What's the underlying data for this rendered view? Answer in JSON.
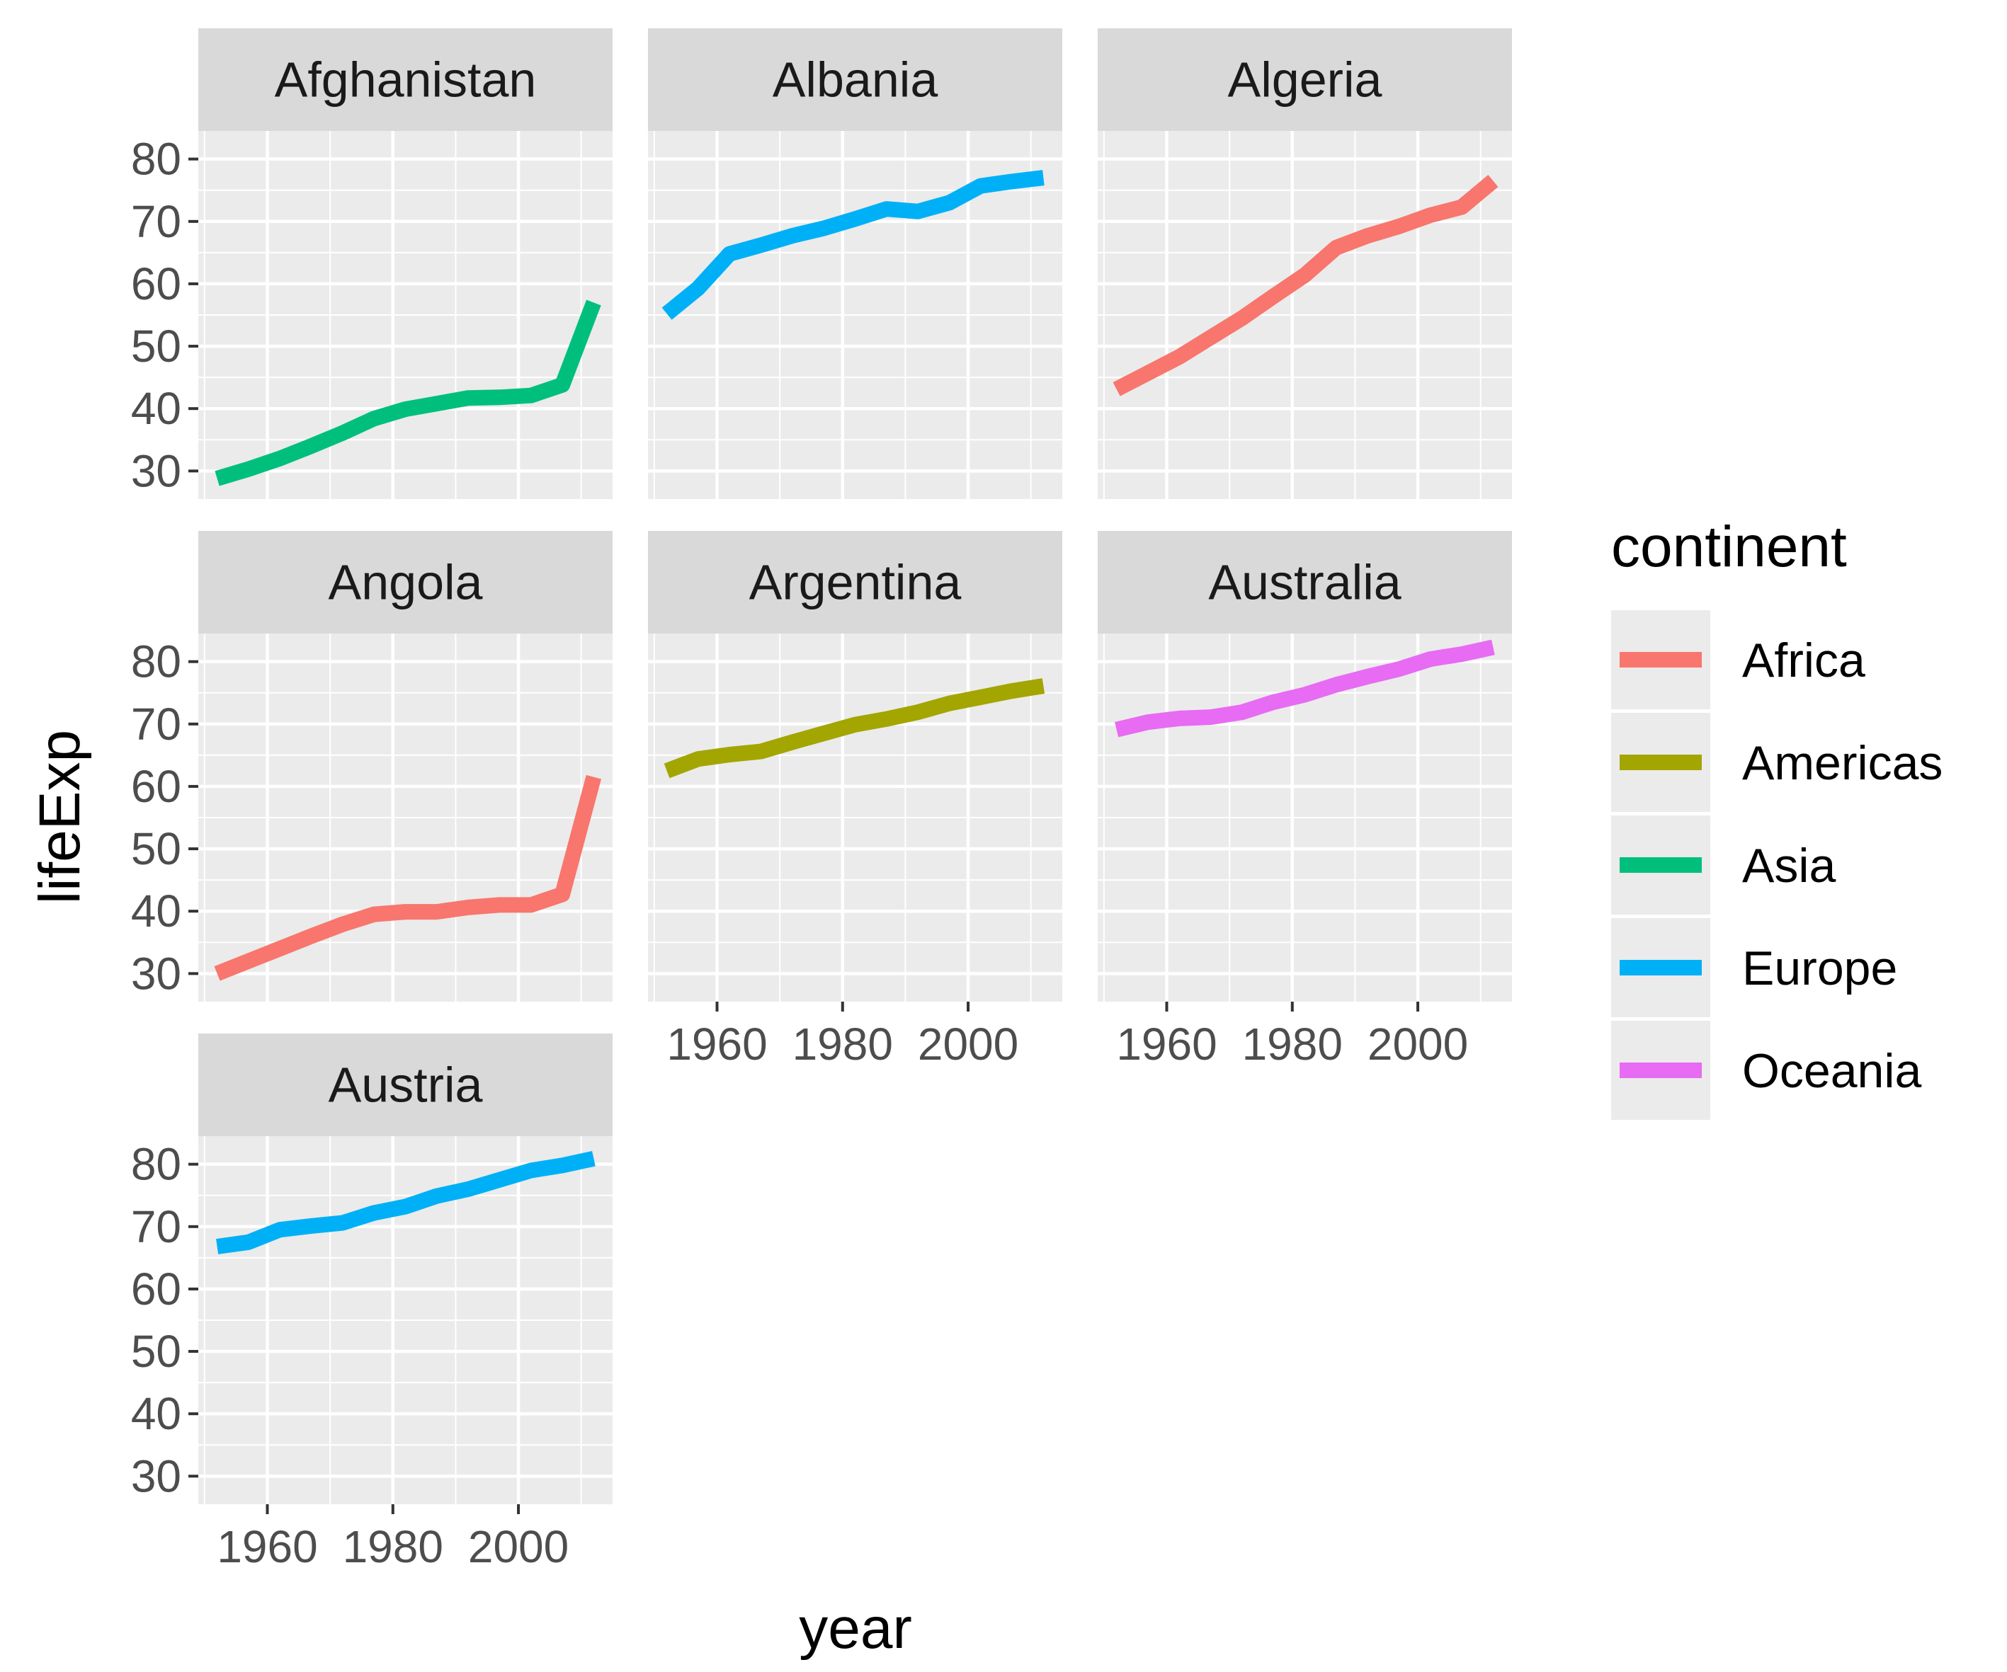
{
  "chart_data": {
    "type": "line",
    "facet_by": "country",
    "xlabel": "year",
    "ylabel": "lifeExp",
    "xlim": [
      1949,
      2015
    ],
    "ylim": [
      25.5,
      84.5
    ],
    "x_ticks": [
      1960,
      1980,
      2000
    ],
    "y_ticks": [
      30,
      40,
      50,
      60,
      70,
      80
    ],
    "grid": true,
    "legend": {
      "title": "continent",
      "position": "right",
      "entries": [
        {
          "name": "Africa",
          "color": "#F8766D"
        },
        {
          "name": "Americas",
          "color": "#A3A500"
        },
        {
          "name": "Asia",
          "color": "#00BF7D"
        },
        {
          "name": "Europe",
          "color": "#00B0F6"
        },
        {
          "name": "Oceania",
          "color": "#E76BF3"
        }
      ]
    },
    "x": [
      1952,
      1957,
      1962,
      1967,
      1972,
      1977,
      1982,
      1987,
      1992,
      1997,
      2002,
      2007,
      2012
    ],
    "panels": [
      {
        "country": "Afghanistan",
        "continent": "Asia",
        "values": [
          28.8,
          30.3,
          32.0,
          34.0,
          36.1,
          38.4,
          39.9,
          40.8,
          41.7,
          41.8,
          42.1,
          43.8,
          57.0
        ]
      },
      {
        "country": "Albania",
        "continent": "Europe",
        "values": [
          55.2,
          59.3,
          64.8,
          66.2,
          67.7,
          68.9,
          70.4,
          72.0,
          71.6,
          73.0,
          75.7,
          76.4,
          77.0
        ]
      },
      {
        "country": "Algeria",
        "continent": "Africa",
        "values": [
          43.1,
          45.7,
          48.3,
          51.4,
          54.5,
          58.0,
          61.4,
          65.8,
          67.7,
          69.2,
          71.0,
          72.3,
          76.5
        ]
      },
      {
        "country": "Angola",
        "continent": "Africa",
        "values": [
          30.0,
          32.0,
          34.0,
          36.0,
          37.9,
          39.5,
          39.9,
          39.9,
          40.6,
          41.0,
          41.0,
          42.7,
          61.5
        ]
      },
      {
        "country": "Argentina",
        "continent": "Americas",
        "values": [
          62.5,
          64.4,
          65.1,
          65.6,
          67.1,
          68.5,
          69.9,
          70.8,
          71.9,
          73.3,
          74.3,
          75.3,
          76.1
        ]
      },
      {
        "country": "Australia",
        "continent": "Oceania",
        "values": [
          69.1,
          70.3,
          70.9,
          71.1,
          71.9,
          73.5,
          74.7,
          76.3,
          77.6,
          78.8,
          80.4,
          81.2,
          82.3
        ]
      },
      {
        "country": "Austria",
        "continent": "Europe",
        "values": [
          66.8,
          67.5,
          69.5,
          70.1,
          70.6,
          72.2,
          73.2,
          74.9,
          76.0,
          77.5,
          79.0,
          79.8,
          80.9
        ]
      }
    ]
  }
}
